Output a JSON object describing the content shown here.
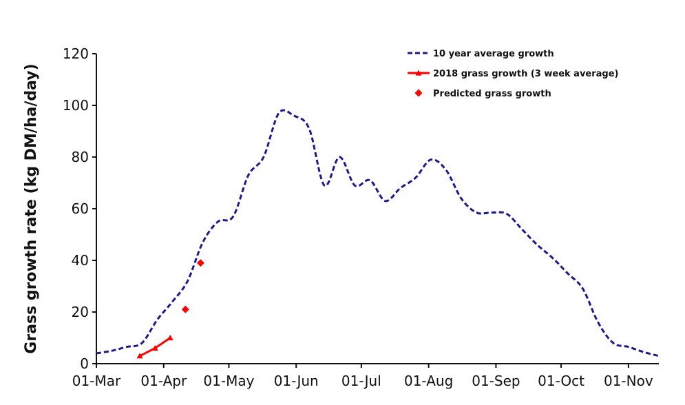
{
  "chart_data": {
    "type": "line",
    "title": "",
    "xlabel": "",
    "ylabel": "Grass growth rate (kg DM/ha/day)",
    "ylim": [
      0,
      120
    ],
    "yticks": [
      "0",
      "20",
      "40",
      "60",
      "80",
      "100",
      "120"
    ],
    "xlim": [
      "2018-03-01",
      "2018-11-15"
    ],
    "xticks": [
      {
        "date": "2018-03-01",
        "label": "01-Mar"
      },
      {
        "date": "2018-04-01",
        "label": "01-Apr"
      },
      {
        "date": "2018-05-01",
        "label": "01-May"
      },
      {
        "date": "2018-06-01",
        "label": "01-Jun"
      },
      {
        "date": "2018-07-01",
        "label": "01-Jul"
      },
      {
        "date": "2018-08-01",
        "label": "01-Aug"
      },
      {
        "date": "2018-09-01",
        "label": "01-Sep"
      },
      {
        "date": "2018-10-01",
        "label": "01-Oct"
      },
      {
        "date": "2018-11-01",
        "label": "01-Nov"
      }
    ],
    "legend_position": "top-right",
    "series": [
      {
        "name": "10 year average growth",
        "style": "dashed-line",
        "color": "#1a1a8c",
        "points": [
          [
            "2018-03-01",
            4
          ],
          [
            "2018-03-08",
            5
          ],
          [
            "2018-03-15",
            6.5
          ],
          [
            "2018-03-22",
            8
          ],
          [
            "2018-03-29",
            17
          ],
          [
            "2018-04-05",
            24
          ],
          [
            "2018-04-12",
            32
          ],
          [
            "2018-04-19",
            47
          ],
          [
            "2018-04-26",
            55
          ],
          [
            "2018-05-03",
            57
          ],
          [
            "2018-05-10",
            73
          ],
          [
            "2018-05-17",
            80
          ],
          [
            "2018-05-24",
            97
          ],
          [
            "2018-05-31",
            96
          ],
          [
            "2018-06-07",
            91
          ],
          [
            "2018-06-14",
            69
          ],
          [
            "2018-06-21",
            80
          ],
          [
            "2018-06-28",
            69
          ],
          [
            "2018-07-05",
            71
          ],
          [
            "2018-07-12",
            63
          ],
          [
            "2018-07-19",
            68
          ],
          [
            "2018-07-26",
            72
          ],
          [
            "2018-08-02",
            79
          ],
          [
            "2018-08-09",
            75
          ],
          [
            "2018-08-16",
            64
          ],
          [
            "2018-08-23",
            58.5
          ],
          [
            "2018-08-30",
            58.5
          ],
          [
            "2018-09-06",
            58
          ],
          [
            "2018-09-13",
            52
          ],
          [
            "2018-09-20",
            46
          ],
          [
            "2018-09-27",
            41
          ],
          [
            "2018-10-04",
            35
          ],
          [
            "2018-10-11",
            29
          ],
          [
            "2018-10-18",
            16
          ],
          [
            "2018-10-25",
            8
          ],
          [
            "2018-11-01",
            6.5
          ],
          [
            "2018-11-08",
            4.5
          ],
          [
            "2018-11-15",
            3
          ]
        ]
      },
      {
        "name": "2018 grass growth (3 week average)",
        "style": "solid-line-triangles",
        "color": "#ff0000",
        "points": [
          [
            "2018-03-21",
            3
          ],
          [
            "2018-03-28",
            6
          ],
          [
            "2018-04-04",
            10
          ]
        ]
      },
      {
        "name": "Predicted grass growth",
        "style": "diamond-markers",
        "color": "#ff0000",
        "points": [
          [
            "2018-04-11",
            21
          ],
          [
            "2018-04-18",
            39
          ]
        ]
      }
    ]
  }
}
